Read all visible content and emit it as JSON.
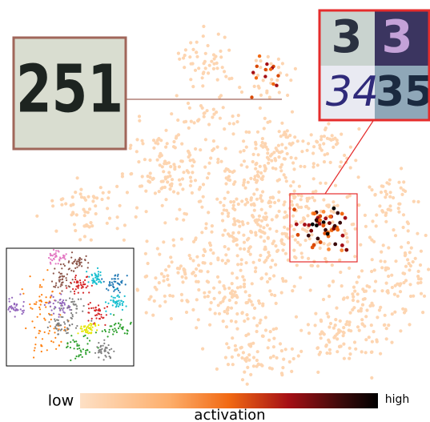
{
  "insets": {
    "left_digits": "251",
    "right_digits": [
      "3",
      "3",
      "34",
      "35"
    ]
  },
  "colorbar": {
    "low_label": "low",
    "high_label": "high",
    "title": "activation"
  }
}
